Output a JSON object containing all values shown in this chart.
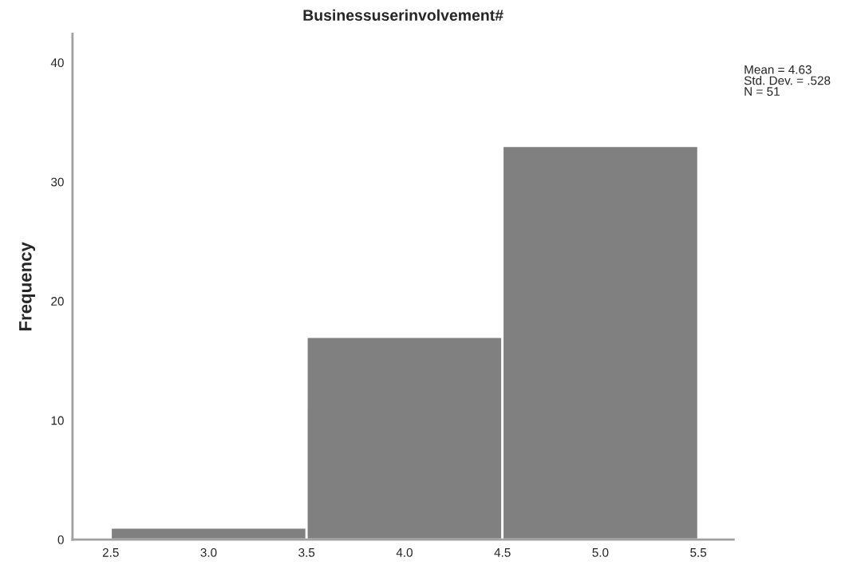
{
  "chart_data": {
    "type": "histogram",
    "title": "Businessuserinvolvement#",
    "ylabel": "Frequency",
    "bins": [
      2.5,
      3.5,
      4.5,
      5.5
    ],
    "values": [
      1,
      17,
      33
    ],
    "color": "#808080",
    "xlim": [
      2.305,
      5.68
    ],
    "ylim": [
      0,
      42.4
    ],
    "xticks": [
      2.5,
      {
        "value": 3,
        "label": "3.0"
      },
      3.5,
      {
        "value": 4,
        "label": "4.0"
      },
      4.5,
      {
        "value": 5,
        "label": "5.0"
      },
      5.5
    ],
    "yticks": [
      0,
      10,
      20,
      30,
      40
    ],
    "grid": false,
    "annotations": [
      "Mean = 4.63\nStd. Dev. = .528\nN = 51"
    ]
  }
}
